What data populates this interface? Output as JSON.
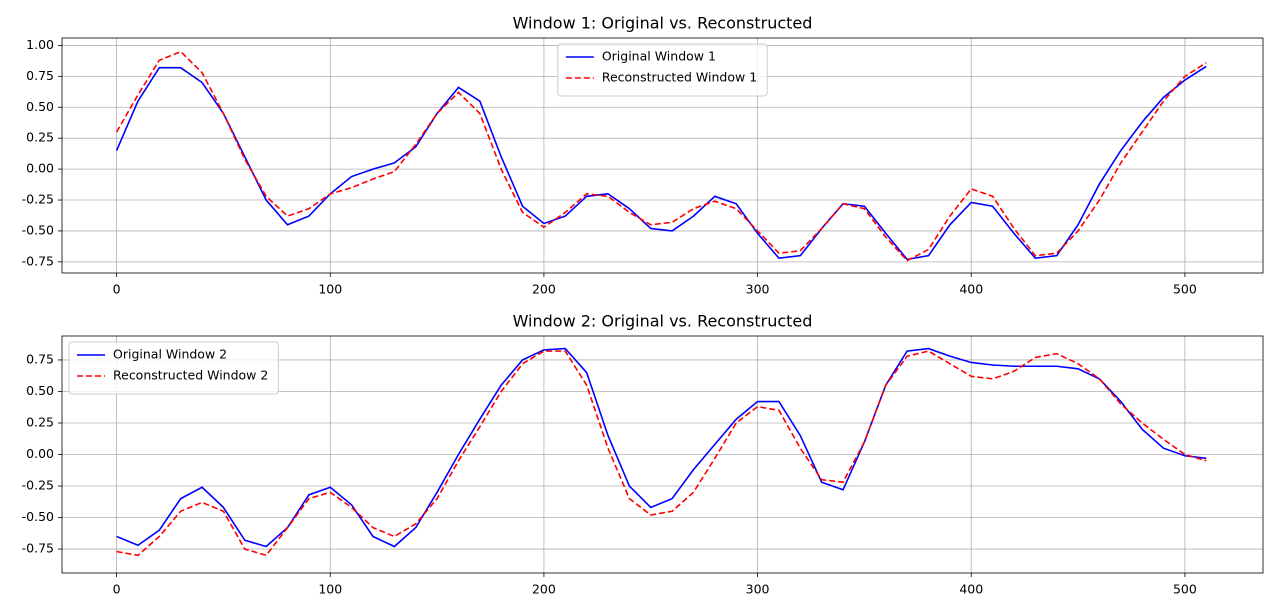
{
  "chart_data": [
    {
      "type": "line",
      "title": "Window 1: Original vs. Reconstructed",
      "x": [
        0,
        10,
        20,
        30,
        40,
        50,
        60,
        70,
        80,
        90,
        100,
        110,
        120,
        130,
        140,
        150,
        160,
        170,
        180,
        190,
        200,
        210,
        220,
        230,
        240,
        250,
        260,
        270,
        280,
        290,
        300,
        310,
        320,
        330,
        340,
        350,
        360,
        370,
        380,
        390,
        400,
        410,
        420,
        430,
        440,
        450,
        460,
        470,
        480,
        490,
        500,
        510
      ],
      "series": [
        {
          "name": "Original Window 1",
          "color": "#0000ff",
          "dash": "solid",
          "values": [
            0.15,
            0.55,
            0.82,
            0.82,
            0.7,
            0.45,
            0.1,
            -0.25,
            -0.45,
            -0.38,
            -0.2,
            -0.06,
            0.0,
            0.05,
            0.18,
            0.45,
            0.66,
            0.55,
            0.1,
            -0.3,
            -0.44,
            -0.38,
            -0.22,
            -0.2,
            -0.32,
            -0.48,
            -0.5,
            -0.38,
            -0.22,
            -0.28,
            -0.52,
            -0.72,
            -0.7,
            -0.48,
            -0.28,
            -0.3,
            -0.52,
            -0.73,
            -0.7,
            -0.45,
            -0.27,
            -0.3,
            -0.52,
            -0.72,
            -0.7,
            -0.45,
            -0.12,
            0.15,
            0.38,
            0.58,
            0.72,
            0.83
          ]
        },
        {
          "name": "Reconstructed Window 1",
          "color": "#ff0000",
          "dash": "dashed",
          "values": [
            0.3,
            0.6,
            0.88,
            0.95,
            0.78,
            0.45,
            0.08,
            -0.22,
            -0.38,
            -0.32,
            -0.2,
            -0.15,
            -0.08,
            -0.02,
            0.2,
            0.45,
            0.62,
            0.45,
            0.0,
            -0.35,
            -0.47,
            -0.35,
            -0.2,
            -0.22,
            -0.35,
            -0.45,
            -0.43,
            -0.32,
            -0.26,
            -0.32,
            -0.5,
            -0.68,
            -0.66,
            -0.48,
            -0.28,
            -0.32,
            -0.55,
            -0.74,
            -0.65,
            -0.38,
            -0.16,
            -0.22,
            -0.48,
            -0.7,
            -0.68,
            -0.5,
            -0.25,
            0.05,
            0.3,
            0.55,
            0.75,
            0.86
          ]
        }
      ],
      "xlim": [
        -25.55,
        536.55
      ],
      "xticks": [
        0,
        100,
        200,
        300,
        400,
        500
      ],
      "ylim": [
        -0.84,
        1.06
      ],
      "yticks": [
        {
          "value": -0.75,
          "label": "-0.75"
        },
        {
          "value": -0.5,
          "label": "-0.50"
        },
        {
          "value": -0.25,
          "label": "-0.25"
        },
        {
          "value": 0,
          "label": "0.00"
        },
        {
          "value": 0.25,
          "label": "0.25"
        },
        {
          "value": 0.5,
          "label": "0.50"
        },
        {
          "value": 0.75,
          "label": "0.75"
        },
        {
          "value": 1,
          "label": "1.00"
        }
      ],
      "grid": true,
      "legend": "upper center"
    },
    {
      "type": "line",
      "title": "Window 2: Original vs. Reconstructed",
      "x": [
        0,
        10,
        20,
        30,
        40,
        50,
        60,
        70,
        80,
        90,
        100,
        110,
        120,
        130,
        140,
        150,
        160,
        170,
        180,
        190,
        200,
        210,
        220,
        230,
        240,
        250,
        260,
        270,
        280,
        290,
        300,
        310,
        320,
        330,
        340,
        350,
        360,
        370,
        380,
        390,
        400,
        410,
        420,
        430,
        440,
        450,
        460,
        470,
        480,
        490,
        500,
        510
      ],
      "series": [
        {
          "name": "Original Window 2",
          "color": "#0000ff",
          "dash": "solid",
          "values": [
            -0.65,
            -0.72,
            -0.6,
            -0.35,
            -0.26,
            -0.42,
            -0.68,
            -0.73,
            -0.58,
            -0.32,
            -0.26,
            -0.4,
            -0.65,
            -0.73,
            -0.58,
            -0.3,
            0.0,
            0.28,
            0.55,
            0.75,
            0.83,
            0.84,
            0.65,
            0.15,
            -0.25,
            -0.42,
            -0.35,
            -0.12,
            0.08,
            0.28,
            0.42,
            0.42,
            0.15,
            -0.22,
            -0.28,
            0.1,
            0.55,
            0.82,
            0.84,
            0.78,
            0.73,
            0.71,
            0.7,
            0.7,
            0.7,
            0.68,
            0.6,
            0.42,
            0.2,
            0.05,
            -0.01,
            -0.03
          ]
        },
        {
          "name": "Reconstructed Window 2",
          "color": "#ff0000",
          "dash": "dashed",
          "values": [
            -0.77,
            -0.8,
            -0.65,
            -0.45,
            -0.38,
            -0.45,
            -0.75,
            -0.8,
            -0.58,
            -0.35,
            -0.3,
            -0.42,
            -0.58,
            -0.65,
            -0.55,
            -0.35,
            -0.05,
            0.22,
            0.5,
            0.72,
            0.82,
            0.82,
            0.55,
            0.05,
            -0.35,
            -0.48,
            -0.45,
            -0.3,
            -0.03,
            0.25,
            0.38,
            0.35,
            0.05,
            -0.2,
            -0.22,
            0.1,
            0.55,
            0.78,
            0.82,
            0.72,
            0.62,
            0.6,
            0.66,
            0.77,
            0.8,
            0.72,
            0.6,
            0.4,
            0.25,
            0.12,
            0.0,
            -0.05
          ]
        }
      ],
      "xlim": [
        -25.55,
        536.55
      ],
      "xticks": [
        0,
        100,
        200,
        300,
        400,
        500
      ],
      "ylim": [
        -0.94,
        0.94
      ],
      "yticks": [
        {
          "value": -0.75,
          "label": "-0.75"
        },
        {
          "value": -0.5,
          "label": "-0.50"
        },
        {
          "value": -0.25,
          "label": "-0.25"
        },
        {
          "value": 0,
          "label": "0.00"
        },
        {
          "value": 0.25,
          "label": "0.25"
        },
        {
          "value": 0.5,
          "label": "0.50"
        },
        {
          "value": 0.75,
          "label": "0.75"
        }
      ],
      "grid": true,
      "legend": "upper left"
    }
  ]
}
